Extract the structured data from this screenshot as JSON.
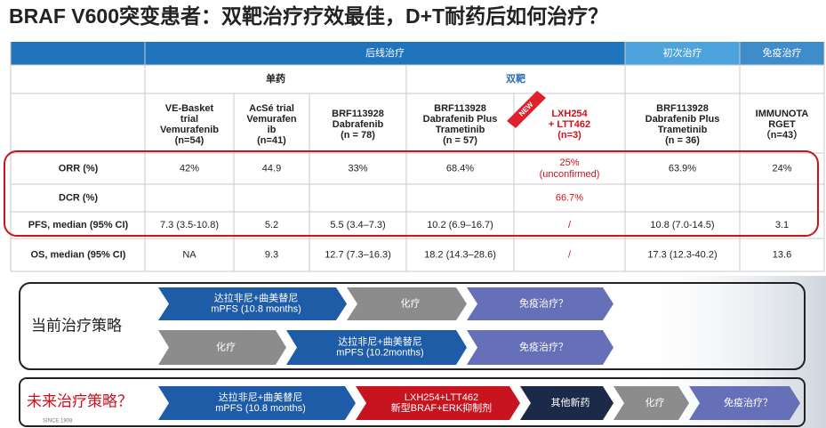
{
  "title": "BRAF V600突变患者：双靶治疗疗效最佳，D+T耐药后如何治疗？",
  "table": {
    "groups": [
      "后线治疗",
      "初次治疗",
      "免疫治疗"
    ],
    "subgroups": [
      "单药",
      "双靶"
    ],
    "badge": "NEW",
    "studies": [
      [
        "VE-Basket",
        "trial",
        "Vemurafenib",
        "(n=54)"
      ],
      [
        "AcSé trial",
        "Vemurafen",
        "ib",
        "(n=41)"
      ],
      [
        "BRF113928",
        "Dabrafenib",
        "(n = 78)"
      ],
      [
        "BRF113928",
        "Dabrafenib Plus",
        "Trametinib",
        "(n = 57)"
      ],
      [
        "LXH254",
        "+ LTT462",
        "(n=3)"
      ],
      [
        "BRF113928",
        "Dabrafenib Plus",
        "Trametinib",
        "(n = 36)"
      ],
      [
        "IMMUNOTA",
        "RGET",
        "（n=43）"
      ]
    ],
    "rows": [
      {
        "label": "ORR (%)",
        "cells": [
          "42%",
          "44.9",
          "33%",
          "68.4%",
          [
            "25%",
            "(unconfirmed)"
          ],
          "63.9%",
          "24%"
        ]
      },
      {
        "label": "DCR (%)",
        "cells": [
          null,
          null,
          null,
          null,
          "66.7%",
          null,
          null
        ]
      },
      {
        "label": "PFS, median (95% CI)",
        "cells": [
          "7.3 (3.5-10.8)",
          "5.2",
          "5.5 (3.4–7.3)",
          "10.2 (6.9–16.7)",
          "/",
          "10.8 (7.0-14.5)",
          "3.1"
        ]
      },
      {
        "label": "OS, median (95% CI)",
        "cells": [
          "NA",
          "9.3",
          "12.7 (7.3–16.3)",
          "18.2 (14.3–28.6)",
          "/",
          "17.3 (12.3-40.2)",
          "13.6"
        ]
      }
    ]
  },
  "current_strategy": {
    "label": "当前治疗策略",
    "paths": [
      [
        [
          "达拉非尼+曲美替尼",
          "mPFS (10.8 months)"
        ],
        "化疗",
        "免疫治疗？"
      ],
      [
        "化疗",
        [
          "达拉非尼+曲美替尼",
          "mPFS (10.2months)"
        ],
        "免疫治疗？"
      ]
    ]
  },
  "future_strategy": {
    "label": "未来治疗策略？",
    "path": [
      [
        "达拉非尼+曲美替尼",
        "mPFS (10.8 months)"
      ],
      [
        "LXH254+LTT462",
        "新型BRAF+ERK抑制剂"
      ],
      "其他新药",
      "化疗",
      "免疫治疗？"
    ]
  },
  "logo": "SINCE 1908"
}
